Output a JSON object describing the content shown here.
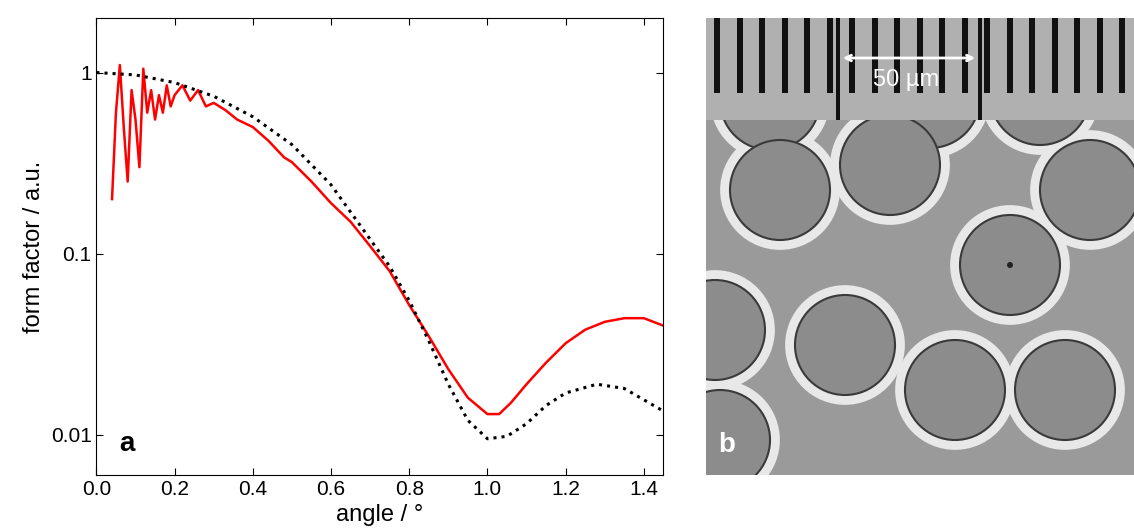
{
  "chart_data": {
    "type": "line",
    "panel_label": "a",
    "x_label": "angle / °",
    "y_label": "form factor / a.u.",
    "log": "y",
    "xlim": [
      0.0,
      1.45
    ],
    "xticks": [
      0.0,
      0.2,
      0.4,
      0.6,
      0.8,
      1.0,
      1.2,
      1.4
    ],
    "ylim": [
      0.006,
      2.0
    ],
    "yticks": [
      0.01,
      0.1,
      1
    ],
    "series": [
      {
        "color": "#ff0000",
        "line_style": "solid",
        "x": [
          0.04,
          0.05,
          0.06,
          0.07,
          0.08,
          0.09,
          0.1,
          0.11,
          0.12,
          0.13,
          0.14,
          0.15,
          0.16,
          0.17,
          0.18,
          0.19,
          0.2,
          0.22,
          0.24,
          0.26,
          0.28,
          0.3,
          0.33,
          0.36,
          0.4,
          0.44,
          0.48,
          0.5,
          0.55,
          0.6,
          0.65,
          0.7,
          0.75,
          0.8,
          0.85,
          0.9,
          0.95,
          1.0,
          1.03,
          1.06,
          1.1,
          1.15,
          1.2,
          1.25,
          1.3,
          1.35,
          1.4,
          1.45
        ],
        "values": [
          0.2,
          0.6,
          1.1,
          0.5,
          0.25,
          0.8,
          0.55,
          0.3,
          1.05,
          0.6,
          0.8,
          0.55,
          0.75,
          0.6,
          0.85,
          0.65,
          0.75,
          0.85,
          0.7,
          0.8,
          0.65,
          0.68,
          0.62,
          0.55,
          0.5,
          0.42,
          0.34,
          0.32,
          0.25,
          0.19,
          0.15,
          0.11,
          0.08,
          0.052,
          0.035,
          0.023,
          0.016,
          0.013,
          0.013,
          0.015,
          0.019,
          0.025,
          0.032,
          0.038,
          0.042,
          0.044,
          0.044,
          0.04
        ]
      },
      {
        "color": "#000000",
        "line_style": "dotted",
        "x": [
          0.0,
          0.1,
          0.2,
          0.3,
          0.4,
          0.5,
          0.6,
          0.7,
          0.75,
          0.8,
          0.85,
          0.9,
          0.95,
          1.0,
          1.05,
          1.1,
          1.15,
          1.2,
          1.28,
          1.35,
          1.45
        ],
        "values": [
          1.0,
          0.97,
          0.88,
          0.74,
          0.57,
          0.4,
          0.24,
          0.12,
          0.085,
          0.055,
          0.033,
          0.019,
          0.012,
          0.0095,
          0.0098,
          0.0115,
          0.0145,
          0.017,
          0.019,
          0.018,
          0.0135
        ]
      }
    ]
  },
  "image": {
    "panel_label": "b",
    "scale_bar": "50 µm"
  }
}
